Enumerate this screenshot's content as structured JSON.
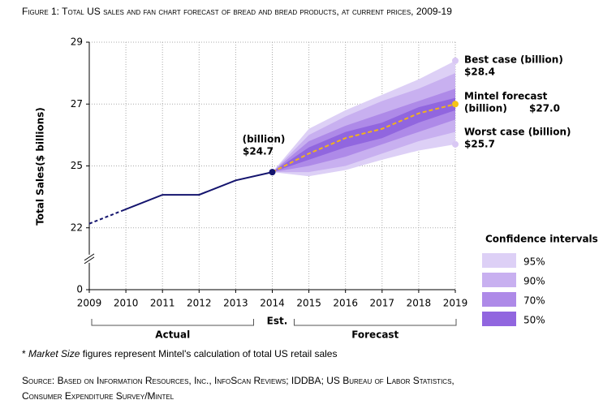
{
  "chart_data": {
    "type": "line",
    "title": "Figure 1: Total US sales and fan chart forecast of bread and bread products, at current prices, 2009-19",
    "y_label": "Total Sales($ billions)",
    "xlim": [
      2009,
      2019
    ],
    "xticks": [
      2009,
      2010,
      2011,
      2012,
      2013,
      2014,
      2015,
      2016,
      2017,
      2018,
      2019
    ],
    "ylim": [
      0,
      29
    ],
    "yticks": [
      0,
      22,
      25,
      27,
      29
    ],
    "axis_break": true,
    "grid": true,
    "est_note": {
      "x": 2014,
      "label": "Est.",
      "color": "#e8141c"
    },
    "series": [
      {
        "name": "Actual",
        "color": "#14146e",
        "x": [
          2009,
          2010,
          2011,
          2012,
          2013,
          2014
        ],
        "values": [
          22.2,
          22.9,
          23.6,
          23.6,
          24.3,
          24.7
        ]
      },
      {
        "name": "Forecast",
        "color": "#f2b21b",
        "dashed": true,
        "x": [
          2014,
          2015,
          2016,
          2017,
          2018,
          2019
        ],
        "values": [
          24.7,
          25.4,
          25.9,
          26.2,
          26.7,
          27.0
        ]
      }
    ],
    "legend_title": "Confidence intervals",
    "legend_position": "right",
    "bands": [
      {
        "name": "95%",
        "color": "#ddd0f6",
        "x": [
          2014,
          2015,
          2016,
          2017,
          2018,
          2019
        ],
        "upper": [
          24.7,
          26.2,
          26.8,
          27.3,
          27.8,
          28.4
        ],
        "lower": [
          24.7,
          24.5,
          24.8,
          25.2,
          25.5,
          25.7
        ]
      },
      {
        "name": "90%",
        "color": "#c8b0f0",
        "x": [
          2014,
          2015,
          2016,
          2017,
          2018,
          2019
        ],
        "upper": [
          24.7,
          26.0,
          26.6,
          27.1,
          27.5,
          28.0
        ],
        "lower": [
          24.7,
          24.7,
          25.0,
          25.4,
          25.8,
          26.1
        ]
      },
      {
        "name": "70%",
        "color": "#ae8ae8",
        "x": [
          2014,
          2015,
          2016,
          2017,
          2018,
          2019
        ],
        "upper": [
          24.7,
          25.8,
          26.3,
          26.7,
          27.1,
          27.5
        ],
        "lower": [
          24.7,
          25.0,
          25.3,
          25.7,
          26.1,
          26.5
        ]
      },
      {
        "name": "50%",
        "color": "#9166df",
        "x": [
          2014,
          2015,
          2016,
          2017,
          2018,
          2019
        ],
        "upper": [
          24.7,
          25.6,
          26.1,
          26.4,
          26.9,
          27.2
        ],
        "lower": [
          24.7,
          25.2,
          25.6,
          25.9,
          26.4,
          26.8
        ]
      }
    ],
    "annotations": [
      {
        "x": 2014,
        "value": 24.7,
        "label": "(billion)",
        "value_label": "$24.7",
        "color": "#14146e"
      },
      {
        "x": 2019,
        "value": 28.4,
        "label": "Best case (billion)",
        "value_label": "$28.4",
        "color": "#d9c8f4"
      },
      {
        "x": 2019,
        "value": 27.0,
        "label": "Mintel forecast",
        "label2": "(billion)",
        "value_label": "$27.0",
        "color": "#f5c518"
      },
      {
        "x": 2019,
        "value": 25.7,
        "label": "Worst case (billion)",
        "value_label": "$25.7",
        "color": "#d9c8f4"
      }
    ],
    "footnote": [
      "* ",
      "Market Size",
      " figures represent Mintel's calculation of total US retail sales"
    ],
    "source": [
      "Source: Based on Information Resources, Inc., InfoScan Reviews; IDDBA; US Bureau of Labor Statistics,",
      "Consumer Expenditure Survey/Mintel"
    ]
  }
}
